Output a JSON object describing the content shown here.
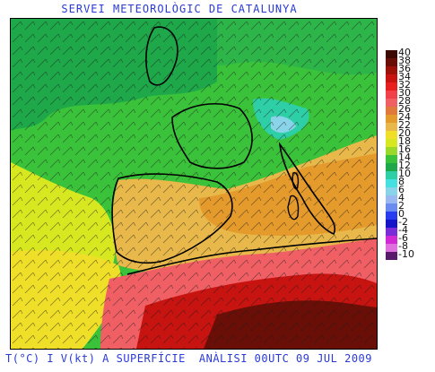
{
  "header": {
    "title": "SERVEI METEOROLÒGIC DE CATALUNYA"
  },
  "footer": {
    "left": "T(°C) I V(kt) A SUPERFÍCIE",
    "right": "ANÀLISI 00UTC 09 JUL 2009"
  },
  "legend": {
    "items": [
      {
        "label": "40",
        "color": "#3b0a05"
      },
      {
        "label": "38",
        "color": "#6a0e08"
      },
      {
        "label": "36",
        "color": "#9c1108"
      },
      {
        "label": "34",
        "color": "#c81410"
      },
      {
        "label": "32",
        "color": "#e81f1f"
      },
      {
        "label": "30",
        "color": "#f0404a"
      },
      {
        "label": "28",
        "color": "#ef5f64"
      },
      {
        "label": "26",
        "color": "#e07a3a"
      },
      {
        "label": "24",
        "color": "#e59a2c"
      },
      {
        "label": "22",
        "color": "#e8b84a"
      },
      {
        "label": "20",
        "color": "#f0df28"
      },
      {
        "label": "18",
        "color": "#d8e820"
      },
      {
        "label": "16",
        "color": "#9ad82a"
      },
      {
        "label": "14",
        "color": "#3ac23a"
      },
      {
        "label": "12",
        "color": "#1ea84a"
      },
      {
        "label": "10",
        "color": "#2ecfa6"
      },
      {
        "label": "8",
        "color": "#45e0e0"
      },
      {
        "label": "6",
        "color": "#8ad4ea"
      },
      {
        "label": "4",
        "color": "#9ab8f2"
      },
      {
        "label": "2",
        "color": "#6a8cf0"
      },
      {
        "label": "0",
        "color": "#2a3cf0"
      },
      {
        "label": "-2",
        "color": "#1414c8"
      },
      {
        "label": "-4",
        "color": "#7a2cd8"
      },
      {
        "label": "-6",
        "color": "#d22ad2"
      },
      {
        "label": "-8",
        "color": "#e070e0"
      },
      {
        "label": "-10",
        "color": "#5a1a6a"
      }
    ]
  }
}
